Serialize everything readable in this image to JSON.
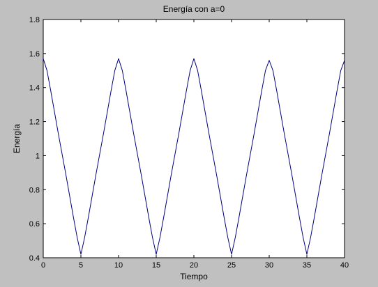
{
  "chart_data": {
    "type": "line",
    "title": "Energía con a=0",
    "xlabel": "Tiempo",
    "ylabel": "Energía",
    "xlim": [
      0,
      40
    ],
    "ylim": [
      0.4,
      1.8
    ],
    "xticks": [
      0,
      5,
      10,
      15,
      20,
      25,
      30,
      35,
      40
    ],
    "yticks": [
      0.4,
      0.6,
      0.8,
      1.0,
      1.2,
      1.4,
      1.6,
      1.8
    ],
    "xtick_labels": [
      "0",
      "5",
      "10",
      "15",
      "20",
      "25",
      "30",
      "35",
      "40"
    ],
    "ytick_labels": [
      "0.4",
      "0.6",
      "0.8",
      "1",
      "1.2",
      "1.4",
      "1.6",
      "1.8"
    ],
    "grid": false,
    "background_color": "#c0c0c0",
    "plot_area_color": "#ffffff",
    "series": [
      {
        "color": "#00007f",
        "x": [
          0,
          0.5,
          1,
          2,
          3,
          4,
          4.5,
          5,
          5.5,
          6,
          7,
          8,
          9,
          9.5,
          10,
          10.5,
          11,
          12,
          13,
          14,
          14.5,
          15,
          15.5,
          16,
          17,
          18,
          19,
          19.5,
          20,
          20.5,
          21,
          22,
          23,
          24,
          24.5,
          25,
          25.5,
          26,
          27,
          28,
          29,
          29.5,
          30,
          30.5,
          31,
          32,
          33,
          34,
          34.5,
          35,
          35.5,
          36,
          37,
          38,
          39,
          39.5,
          40
        ],
        "y": [
          1.57,
          1.5,
          1.38,
          1.13,
          0.89,
          0.64,
          0.52,
          0.42,
          0.52,
          0.64,
          0.89,
          1.13,
          1.38,
          1.5,
          1.57,
          1.5,
          1.38,
          1.13,
          0.89,
          0.64,
          0.52,
          0.42,
          0.52,
          0.64,
          0.89,
          1.13,
          1.38,
          1.5,
          1.57,
          1.5,
          1.38,
          1.13,
          0.89,
          0.64,
          0.52,
          0.42,
          0.52,
          0.64,
          0.89,
          1.13,
          1.38,
          1.5,
          1.56,
          1.5,
          1.38,
          1.13,
          0.89,
          0.64,
          0.52,
          0.42,
          0.52,
          0.64,
          0.89,
          1.13,
          1.38,
          1.5,
          1.56
        ]
      }
    ]
  }
}
